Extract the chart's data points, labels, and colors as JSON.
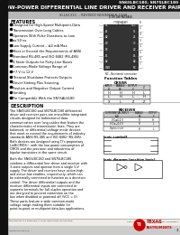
{
  "title_line1": "SN65LBC180, SN75LBC180",
  "title_line2": "LOW-POWER DIFFERENTIAL LINE DRIVER AND RECEIVER PAIRS",
  "subtitle_bar": "SLLS131C – REVISED NOVEMBER 1998",
  "features": [
    "Designed for High-Speed Multipoint-Data",
    "Transmission Over Long Cables",
    "Operates With Pulse Durations as Low",
    "as 50 ns",
    "Low Supply Current – ≤4 mA Max",
    "Meet or Exceed the Requirements of ANSI",
    "Standard RS-485 and ISO 8482 (RS-485)",
    "3-State Outputs for Party-Line Buses",
    "Common-Mode Voltage Range of",
    "−7 V to 12 V",
    "Thermal Shutdown Protects Outputs",
    "Driver Sinking Plus Sourcing,",
    "Positive and Negative Output Current",
    "Limiting",
    "Pin Compatible With the SN75ALS180"
  ],
  "desc1": "The SN65LBC180 and SN75LBC180 differential driver and receiver pairs are monolithic integrated circuits designed for bidirectional data communication over long cables that feature the characteristics of transmission lines. They are balanced, or differential-voltage mode devices that meet or exceed the requirements of industry standards ANSI RS-485 and ISO 8482 (RS-485). Both devices are designed using TI’s proprietary LinBiCMOS™ with the low power consumption of CMOS and the precision and robustness of bipolar transistors in the same circuit.",
  "desc2": "Both the SN65LBC180 and SN75LBC180 combine a differential line driver and receiver with 3-state outputs and operate from a single 5-V supply. The driver and receiver have active high and active low enables, respectively, which can be externally connected to function as a direction control. The driver differential outputs and the receiver differential inputs are connected to separate terminals for full-duplex operation and are designed to prevent contention on the bus when disabled or powered off (VCC = 0). These parts feature a wide common-mode voltage range making them suitable for point-to-point or multipoint data-bus applications.",
  "left_pins": [
    "NC",
    "A1",
    "A2",
    "DE",
    "RE",
    "B1",
    "B2",
    "GND"
  ],
  "right_pins": [
    "VCC",
    "Y1",
    "Z1",
    "Y2",
    "Z2",
    "A1OUT",
    "A2OUT",
    "NC"
  ],
  "bg_color": "#f0ede8",
  "header_bg": "#1a1a1a",
  "white_bg": "#ffffff",
  "text_color": "#000000",
  "gray_bar": "#c8c8c8",
  "table_gray": "#d0d0d0"
}
